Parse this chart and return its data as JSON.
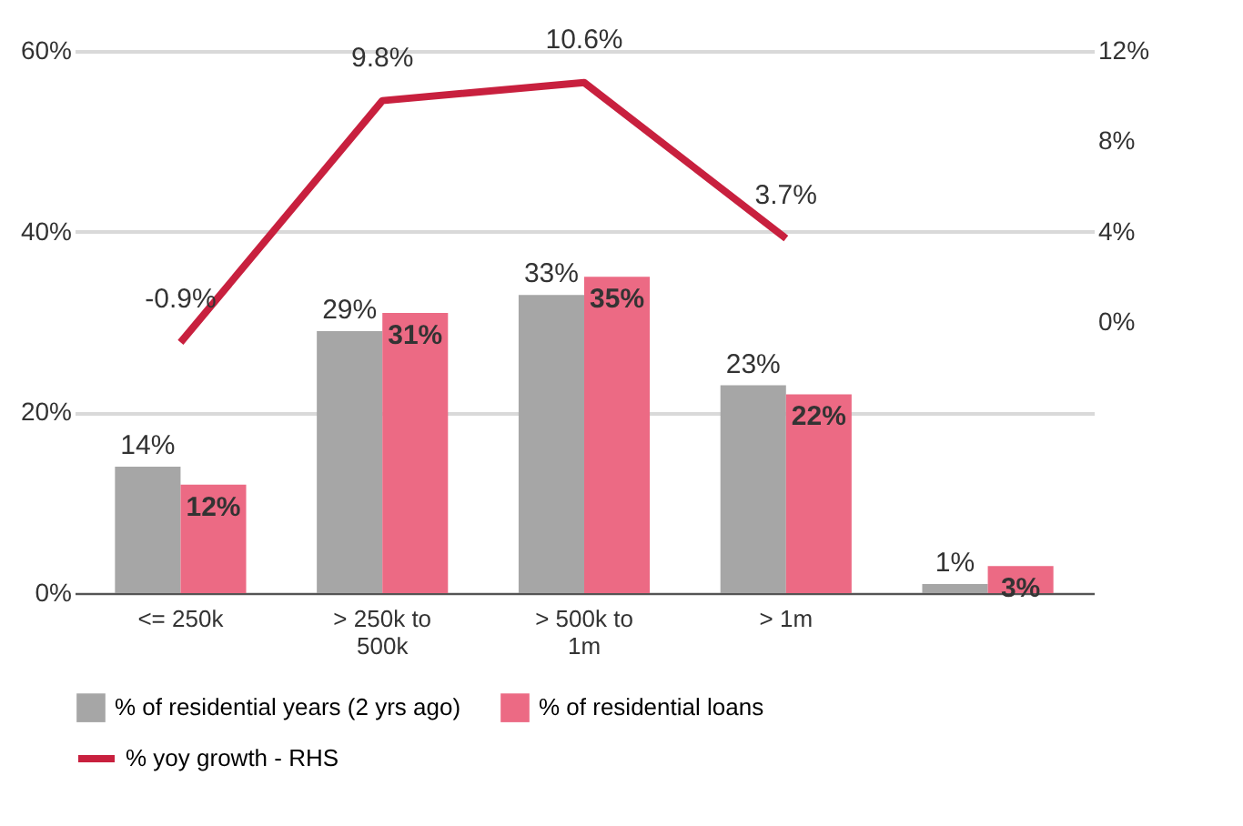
{
  "chart_data": {
    "type": "bar",
    "categories": [
      "<= 250k",
      "> 250k to 500k",
      "> 500k to 1m",
      "> 1m",
      null
    ],
    "series": [
      {
        "name": "% of residential years (2 yrs ago)",
        "color": "#a6a6a6",
        "values": [
          14,
          29,
          33,
          23,
          1
        ],
        "value_labels": [
          "14%",
          "29%",
          "33%",
          "23%",
          "1%"
        ]
      },
      {
        "name": "% of residential loans",
        "color": "#ec6a84",
        "values": [
          12,
          31,
          35,
          22,
          3
        ],
        "value_labels": [
          "12%",
          "31%",
          "35%",
          "22%",
          "3%"
        ]
      },
      {
        "name": "% yoy growth - RHS",
        "type": "line",
        "axis": "y2",
        "color": "#c8203e",
        "values": [
          -0.9,
          9.8,
          10.6,
          3.7,
          null
        ],
        "value_labels": [
          "-0.9%",
          "9.8%",
          "10.6%",
          "3.7%",
          null
        ]
      }
    ],
    "ylim": [
      0,
      60
    ],
    "yticks": [
      {
        "value": 0,
        "label": "0%"
      },
      {
        "value": 20,
        "label": "20%"
      },
      {
        "value": 40,
        "label": "40%"
      },
      {
        "value": 60,
        "label": "60%"
      }
    ],
    "y2lim": [
      -12,
      12
    ],
    "y2ticks": [
      {
        "value": 0,
        "label": "0%"
      },
      {
        "value": 4,
        "label": "4%"
      },
      {
        "value": 8,
        "label": "8%"
      },
      {
        "value": 12,
        "label": "12%"
      }
    ],
    "grid": "y",
    "legend": "bottom"
  }
}
